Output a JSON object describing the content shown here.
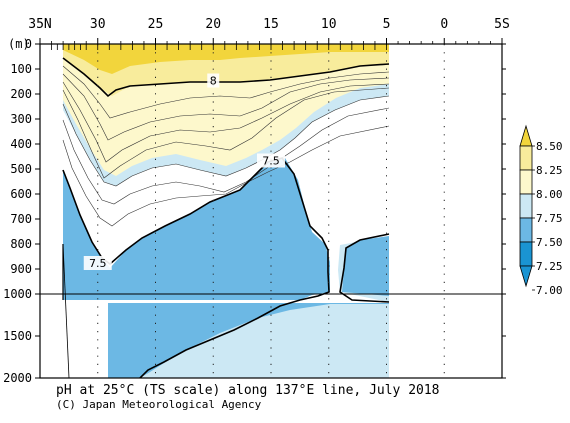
{
  "chart_data": {
    "type": "heatmap",
    "title": "pH at 25°C (TS scale) along 137°E line, July 2018",
    "credit": "(C) Japan Meteorological Agency",
    "y_unit_label": "(m)",
    "x_tick_labels": [
      "35N",
      "30",
      "25",
      "20",
      "15",
      "10",
      "5",
      "0",
      "5S"
    ],
    "x_latitudes": [
      35,
      30,
      25,
      20,
      15,
      10,
      5,
      0,
      -5
    ],
    "xlim": [
      35,
      -5
    ],
    "y_tick_labels": [
      "0",
      "100",
      "200",
      "300",
      "400",
      "500",
      "600",
      "700",
      "800",
      "900",
      "1000",
      "1500",
      "2000"
    ],
    "y_depths": [
      0,
      100,
      200,
      300,
      400,
      500,
      600,
      700,
      800,
      900,
      1000,
      1500,
      2000
    ],
    "ylim": [
      0,
      2000
    ],
    "y_scale_note": "linear 0-1000 m, compressed 1000-2000 m",
    "contour_labels": [
      {
        "text": "8",
        "lat": 20,
        "depth": 150
      },
      {
        "text": "7.5",
        "lat": 15,
        "depth": 470
      },
      {
        "text": "7.5",
        "lat": 30,
        "depth": 880
      }
    ],
    "colorbar": {
      "labels": [
        "8.50",
        "8.25",
        "8.00",
        "7.75",
        "7.50",
        "7.25",
        "7.00"
      ],
      "levels": [
        8.5,
        8.25,
        8.0,
        7.75,
        7.5,
        7.25,
        7.0
      ],
      "colors": [
        "#f2d53c",
        "#f8ec9c",
        "#fdf8cc",
        "#cce8f4",
        "#6cb8e4",
        "#1a94d2"
      ],
      "extend": "both"
    },
    "legend": "right",
    "grid": "dotted verticals at labeled latitudes",
    "sample_range_lat": [
      34,
      5
    ]
  }
}
